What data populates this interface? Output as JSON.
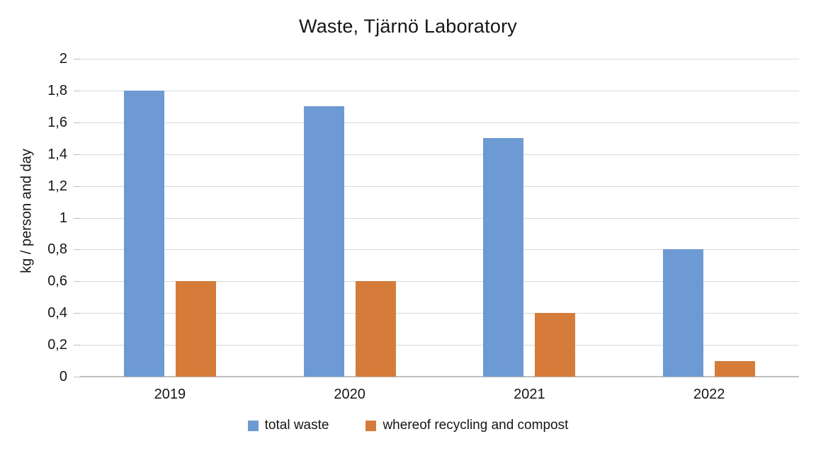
{
  "chart_data": {
    "type": "bar",
    "title": "Waste, Tjärnö Laboratory",
    "xlabel": "",
    "ylabel": "kg / person and day",
    "categories": [
      "2019",
      "2020",
      "2021",
      "2022"
    ],
    "series": [
      {
        "name": "total waste",
        "color": "#6D9AD2",
        "values": [
          1.8,
          1.7,
          1.5,
          0.8
        ]
      },
      {
        "name": "whereof recycling and compost",
        "color": "#D57C3B",
        "values": [
          0.6,
          0.6,
          0.4,
          0.1
        ]
      }
    ],
    "ylim": [
      0,
      2
    ],
    "ytick_step": 0.2,
    "ytick_labels": [
      "0",
      "0,2",
      "0,4",
      "0,6",
      "0,8",
      "1",
      "1,2",
      "1,4",
      "1,6",
      "1,8",
      "2"
    ],
    "grid": true,
    "legend_position": "bottom"
  },
  "colors": {
    "gridline": "#D9D9D9",
    "axis_line": "#C0BEBE",
    "tick_mark": "#C0BEBE",
    "text": "#161616"
  }
}
